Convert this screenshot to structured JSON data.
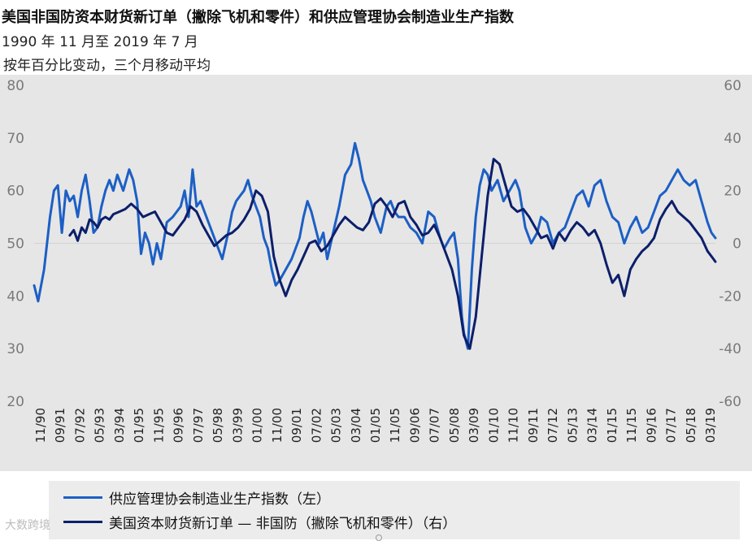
{
  "header": {
    "title": "美国非国防资本财货新订单（撇除飞机和零件）和供应管理协会制造业生产指数",
    "subtitle": "1990 年 11 月至 2019 年 7 月",
    "note": "按年百分比变动，三个月移动平均"
  },
  "legend": {
    "item1": "供应管理协会制造业生产指数（左）",
    "item2": "美国资本财货新订单 — 非国防（撇除飞机和零件）（右）"
  },
  "watermark": "大数跨境",
  "colors": {
    "ism": "#1c5fc5",
    "orders": "#0c1f6b",
    "background": "#e6e6e6",
    "grid": "#ffffff"
  },
  "chart_data": {
    "type": "line",
    "x_tick_labels": [
      "11/90",
      "09/91",
      "07/92",
      "05/93",
      "03/94",
      "01/95",
      "11/95",
      "09/96",
      "07/97",
      "05/98",
      "03/99",
      "01/00",
      "11/00",
      "09/01",
      "07/02",
      "05/03",
      "03/04",
      "01/05",
      "11/05",
      "09/06",
      "07/07",
      "05/08",
      "03/09",
      "01/10",
      "11/10",
      "09/11",
      "07/12",
      "05/13",
      "03/14",
      "01/15",
      "11/15",
      "09/16",
      "07/17",
      "05/18",
      "03/19"
    ],
    "y_left_ticks": [
      80,
      70,
      60,
      50,
      40,
      30,
      20
    ],
    "y_right_ticks": [
      60,
      40,
      20,
      0,
      -20,
      -40,
      -60
    ],
    "y_left_range": [
      20,
      80
    ],
    "y_right_range": [
      -60,
      60
    ],
    "series": [
      {
        "name": "供应管理协会制造业生产指数（左）",
        "axis": "left",
        "points": [
          [
            "1990-11",
            42
          ],
          [
            "1991-01",
            39
          ],
          [
            "1991-04",
            45
          ],
          [
            "1991-07",
            55
          ],
          [
            "1991-09",
            60
          ],
          [
            "1991-11",
            61
          ],
          [
            "1992-01",
            52
          ],
          [
            "1992-03",
            60
          ],
          [
            "1992-05",
            58
          ],
          [
            "1992-07",
            59
          ],
          [
            "1992-09",
            55
          ],
          [
            "1992-11",
            60
          ],
          [
            "1993-01",
            63
          ],
          [
            "1993-03",
            58
          ],
          [
            "1993-05",
            52
          ],
          [
            "1993-07",
            53
          ],
          [
            "1993-09",
            57
          ],
          [
            "1993-11",
            60
          ],
          [
            "1994-01",
            62
          ],
          [
            "1994-03",
            60
          ],
          [
            "1994-05",
            63
          ],
          [
            "1994-08",
            60
          ],
          [
            "1994-11",
            64
          ],
          [
            "1995-01",
            62
          ],
          [
            "1995-03",
            58
          ],
          [
            "1995-05",
            48
          ],
          [
            "1995-07",
            52
          ],
          [
            "1995-09",
            50
          ],
          [
            "1995-11",
            46
          ],
          [
            "1996-01",
            50
          ],
          [
            "1996-03",
            47
          ],
          [
            "1996-06",
            54
          ],
          [
            "1996-09",
            55
          ],
          [
            "1996-11",
            56
          ],
          [
            "1997-01",
            57
          ],
          [
            "1997-03",
            60
          ],
          [
            "1997-05",
            55
          ],
          [
            "1997-07",
            64
          ],
          [
            "1997-09",
            57
          ],
          [
            "1997-11",
            58
          ],
          [
            "1998-01",
            56
          ],
          [
            "1998-04",
            53
          ],
          [
            "1998-07",
            50
          ],
          [
            "1998-10",
            47
          ],
          [
            "1999-01",
            52
          ],
          [
            "1999-03",
            56
          ],
          [
            "1999-05",
            58
          ],
          [
            "1999-07",
            59
          ],
          [
            "1999-09",
            60
          ],
          [
            "1999-11",
            62
          ],
          [
            "2000-01",
            59
          ],
          [
            "2000-03",
            57
          ],
          [
            "2000-05",
            55
          ],
          [
            "2000-07",
            51
          ],
          [
            "2000-09",
            49
          ],
          [
            "2000-11",
            45
          ],
          [
            "2001-01",
            42
          ],
          [
            "2001-03",
            43
          ],
          [
            "2001-06",
            45
          ],
          [
            "2001-09",
            47
          ],
          [
            "2002-01",
            51
          ],
          [
            "2002-03",
            55
          ],
          [
            "2002-05",
            58
          ],
          [
            "2002-07",
            56
          ],
          [
            "2002-09",
            53
          ],
          [
            "2002-11",
            50
          ],
          [
            "2003-01",
            52
          ],
          [
            "2003-03",
            47
          ],
          [
            "2003-06",
            52
          ],
          [
            "2003-09",
            57
          ],
          [
            "2003-12",
            63
          ],
          [
            "2004-03",
            65
          ],
          [
            "2004-05",
            69
          ],
          [
            "2004-07",
            66
          ],
          [
            "2004-09",
            62
          ],
          [
            "2004-11",
            60
          ],
          [
            "2005-01",
            58
          ],
          [
            "2005-03",
            55
          ],
          [
            "2005-06",
            52
          ],
          [
            "2005-09",
            57
          ],
          [
            "2005-11",
            58
          ],
          [
            "2006-01",
            56
          ],
          [
            "2006-03",
            55
          ],
          [
            "2006-06",
            55
          ],
          [
            "2006-09",
            53
          ],
          [
            "2006-12",
            52
          ],
          [
            "2007-03",
            50
          ],
          [
            "2007-06",
            56
          ],
          [
            "2007-09",
            55
          ],
          [
            "2007-12",
            51
          ],
          [
            "2008-02",
            49
          ],
          [
            "2008-05",
            51
          ],
          [
            "2008-07",
            52
          ],
          [
            "2008-09",
            47
          ],
          [
            "2008-11",
            36
          ],
          [
            "2008-12",
            33
          ],
          [
            "2009-02",
            30
          ],
          [
            "2009-04",
            45
          ],
          [
            "2009-06",
            55
          ],
          [
            "2009-08",
            61
          ],
          [
            "2009-10",
            64
          ],
          [
            "2009-12",
            63
          ],
          [
            "2010-02",
            60
          ],
          [
            "2010-05",
            62
          ],
          [
            "2010-08",
            58
          ],
          [
            "2010-11",
            60
          ],
          [
            "2011-02",
            62
          ],
          [
            "2011-04",
            60
          ],
          [
            "2011-07",
            53
          ],
          [
            "2011-10",
            50
          ],
          [
            "2012-01",
            52
          ],
          [
            "2012-03",
            55
          ],
          [
            "2012-06",
            54
          ],
          [
            "2012-09",
            50
          ],
          [
            "2012-12",
            52
          ],
          [
            "2013-03",
            53
          ],
          [
            "2013-06",
            56
          ],
          [
            "2013-09",
            59
          ],
          [
            "2013-12",
            60
          ],
          [
            "2014-03",
            57
          ],
          [
            "2014-06",
            61
          ],
          [
            "2014-09",
            62
          ],
          [
            "2014-12",
            58
          ],
          [
            "2015-03",
            55
          ],
          [
            "2015-06",
            54
          ],
          [
            "2015-09",
            50
          ],
          [
            "2015-12",
            53
          ],
          [
            "2016-03",
            55
          ],
          [
            "2016-06",
            52
          ],
          [
            "2016-09",
            53
          ],
          [
            "2016-12",
            56
          ],
          [
            "2017-03",
            59
          ],
          [
            "2017-06",
            60
          ],
          [
            "2017-09",
            62
          ],
          [
            "2017-12",
            64
          ],
          [
            "2018-03",
            62
          ],
          [
            "2018-06",
            61
          ],
          [
            "2018-09",
            62
          ],
          [
            "2018-12",
            58
          ],
          [
            "2019-03",
            54
          ],
          [
            "2019-05",
            52
          ],
          [
            "2019-07",
            51
          ]
        ]
      },
      {
        "name": "美国资本财货新订单 — 非国防（撇除飞机和零件）（右）",
        "axis": "right",
        "points": [
          [
            "1992-05",
            3
          ],
          [
            "1992-07",
            5
          ],
          [
            "1992-09",
            1
          ],
          [
            "1992-11",
            6
          ],
          [
            "1993-01",
            4
          ],
          [
            "1993-03",
            9
          ],
          [
            "1993-05",
            8
          ],
          [
            "1993-07",
            6
          ],
          [
            "1993-09",
            9
          ],
          [
            "1993-11",
            10
          ],
          [
            "1994-01",
            9
          ],
          [
            "1994-03",
            11
          ],
          [
            "1994-06",
            12
          ],
          [
            "1994-09",
            13
          ],
          [
            "1994-12",
            15
          ],
          [
            "1995-03",
            13
          ],
          [
            "1995-06",
            10
          ],
          [
            "1995-09",
            11
          ],
          [
            "1995-12",
            12
          ],
          [
            "1996-03",
            8
          ],
          [
            "1996-06",
            4
          ],
          [
            "1996-09",
            3
          ],
          [
            "1996-12",
            6
          ],
          [
            "1997-03",
            9
          ],
          [
            "1997-06",
            14
          ],
          [
            "1997-09",
            12
          ],
          [
            "1997-12",
            7
          ],
          [
            "1998-03",
            3
          ],
          [
            "1998-06",
            -1
          ],
          [
            "1998-09",
            1
          ],
          [
            "1998-12",
            3
          ],
          [
            "1999-03",
            4
          ],
          [
            "1999-06",
            6
          ],
          [
            "1999-09",
            9
          ],
          [
            "1999-12",
            13
          ],
          [
            "2000-03",
            20
          ],
          [
            "2000-06",
            18
          ],
          [
            "2000-09",
            12
          ],
          [
            "2000-12",
            -5
          ],
          [
            "2001-03",
            -14
          ],
          [
            "2001-06",
            -20
          ],
          [
            "2001-09",
            -14
          ],
          [
            "2001-12",
            -10
          ],
          [
            "2002-03",
            -5
          ],
          [
            "2002-06",
            0
          ],
          [
            "2002-09",
            1
          ],
          [
            "2002-12",
            -3
          ],
          [
            "2003-03",
            -1
          ],
          [
            "2003-06",
            3
          ],
          [
            "2003-09",
            7
          ],
          [
            "2003-12",
            10
          ],
          [
            "2004-03",
            8
          ],
          [
            "2004-06",
            6
          ],
          [
            "2004-09",
            5
          ],
          [
            "2004-12",
            8
          ],
          [
            "2005-03",
            15
          ],
          [
            "2005-06",
            17
          ],
          [
            "2005-09",
            14
          ],
          [
            "2005-12",
            10
          ],
          [
            "2006-03",
            15
          ],
          [
            "2006-06",
            16
          ],
          [
            "2006-09",
            10
          ],
          [
            "2006-12",
            7
          ],
          [
            "2007-03",
            3
          ],
          [
            "2007-06",
            4
          ],
          [
            "2007-09",
            7
          ],
          [
            "2007-12",
            2
          ],
          [
            "2008-03",
            -4
          ],
          [
            "2008-06",
            -10
          ],
          [
            "2008-09",
            -20
          ],
          [
            "2008-12",
            -35
          ],
          [
            "2009-03",
            -40
          ],
          [
            "2009-06",
            -28
          ],
          [
            "2009-09",
            -5
          ],
          [
            "2009-12",
            18
          ],
          [
            "2010-03",
            32
          ],
          [
            "2010-06",
            30
          ],
          [
            "2010-09",
            22
          ],
          [
            "2010-12",
            14
          ],
          [
            "2011-03",
            12
          ],
          [
            "2011-06",
            13
          ],
          [
            "2011-09",
            10
          ],
          [
            "2011-12",
            6
          ],
          [
            "2012-03",
            2
          ],
          [
            "2012-06",
            3
          ],
          [
            "2012-09",
            -2
          ],
          [
            "2012-12",
            4
          ],
          [
            "2013-03",
            1
          ],
          [
            "2013-06",
            5
          ],
          [
            "2013-09",
            8
          ],
          [
            "2013-12",
            6
          ],
          [
            "2014-03",
            3
          ],
          [
            "2014-06",
            5
          ],
          [
            "2014-09",
            0
          ],
          [
            "2014-12",
            -8
          ],
          [
            "2015-03",
            -15
          ],
          [
            "2015-06",
            -12
          ],
          [
            "2015-09",
            -20
          ],
          [
            "2015-12",
            -10
          ],
          [
            "2016-03",
            -6
          ],
          [
            "2016-06",
            -3
          ],
          [
            "2016-09",
            -1
          ],
          [
            "2016-12",
            2
          ],
          [
            "2017-03",
            9
          ],
          [
            "2017-06",
            13
          ],
          [
            "2017-09",
            16
          ],
          [
            "2017-12",
            12
          ],
          [
            "2018-03",
            10
          ],
          [
            "2018-06",
            8
          ],
          [
            "2018-09",
            5
          ],
          [
            "2018-12",
            2
          ],
          [
            "2019-03",
            -3
          ],
          [
            "2019-06",
            -6
          ],
          [
            "2019-07",
            -7
          ]
        ]
      }
    ],
    "grid": "horizontal",
    "legend_position": "bottom"
  }
}
